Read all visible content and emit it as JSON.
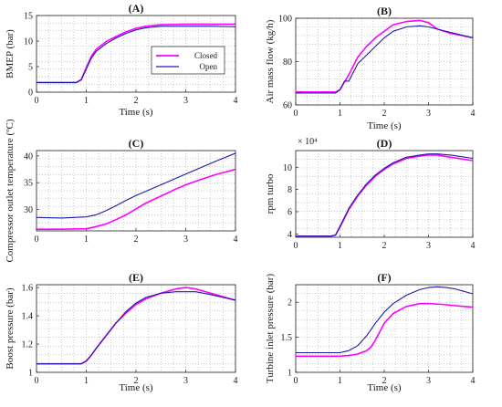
{
  "chart_data": [
    {
      "panel": "(A)",
      "type": "line",
      "xlabel": "Time (s)",
      "ylabel": "BMEP (bar)",
      "xlim": [
        0,
        4
      ],
      "ylim": [
        0,
        15
      ],
      "xticks": [
        0,
        1,
        2,
        3,
        4
      ],
      "yticks": [
        0,
        5,
        10,
        15
      ],
      "grid": "dotted",
      "legend": {
        "placement": "center-right",
        "entries": [
          "Closed",
          "Open"
        ]
      },
      "series": [
        {
          "name": "Closed",
          "color": "#ff00ff",
          "x": [
            0,
            0.8,
            0.9,
            1.0,
            1.1,
            1.2,
            1.4,
            1.6,
            1.8,
            2.0,
            2.2,
            2.5,
            3.0,
            3.5,
            4.0
          ],
          "y": [
            1.9,
            1.9,
            2.5,
            4.8,
            7.0,
            8.4,
            9.9,
            10.9,
            11.8,
            12.5,
            12.9,
            13.2,
            13.3,
            13.3,
            13.3
          ]
        },
        {
          "name": "Open",
          "color": "#1a1aa8",
          "x": [
            0,
            0.8,
            0.9,
            1.0,
            1.1,
            1.2,
            1.4,
            1.6,
            1.8,
            2.0,
            2.2,
            2.5,
            3.0,
            3.5,
            4.0
          ],
          "y": [
            1.9,
            1.9,
            2.4,
            4.5,
            6.6,
            8.0,
            9.5,
            10.6,
            11.5,
            12.2,
            12.6,
            12.9,
            12.9,
            12.9,
            12.8
          ]
        }
      ]
    },
    {
      "panel": "(B)",
      "type": "line",
      "xlabel": "Time (s)",
      "ylabel": "Air mass flow (kg/h)",
      "xlim": [
        0,
        4
      ],
      "ylim": [
        60,
        100
      ],
      "xticks": [
        0,
        1,
        2,
        3,
        4
      ],
      "yticks": [
        60,
        80,
        100
      ],
      "grid": "dotted",
      "series": [
        {
          "name": "Closed",
          "color": "#ff00ff",
          "x": [
            0,
            0.9,
            1.0,
            1.2,
            1.4,
            1.6,
            1.8,
            2.0,
            2.2,
            2.5,
            2.8,
            3.0,
            3.2,
            3.5,
            4.0
          ],
          "y": [
            66,
            66,
            67,
            74,
            82,
            87,
            91,
            94,
            97,
            98.5,
            99,
            98,
            95,
            93,
            91
          ]
        },
        {
          "name": "Open",
          "color": "#1a1aa8",
          "x": [
            0,
            0.9,
            1.0,
            1.1,
            1.2,
            1.3,
            1.4,
            1.6,
            1.8,
            2.0,
            2.2,
            2.5,
            2.8,
            3.0,
            3.3,
            3.6,
            4.0
          ],
          "y": [
            65.5,
            65.5,
            67,
            71,
            71,
            75,
            79,
            83,
            87,
            91,
            94,
            96,
            96.5,
            96,
            94.5,
            93,
            91
          ]
        }
      ]
    },
    {
      "panel": "(C)",
      "type": "line",
      "xlabel": "",
      "ylabel": "Compressor outlet temperature (ºC)",
      "xlim": [
        0,
        4
      ],
      "ylim": [
        26,
        41
      ],
      "xticks": [
        0,
        1,
        2,
        3,
        4
      ],
      "yticks": [
        30,
        35,
        40
      ],
      "grid": "dotted",
      "series": [
        {
          "name": "Closed",
          "color": "#ff00ff",
          "x": [
            0,
            0.5,
            1.0,
            1.2,
            1.4,
            1.6,
            1.8,
            2.0,
            2.2,
            2.5,
            2.8,
            3.0,
            3.3,
            3.6,
            4.0
          ],
          "y": [
            26.3,
            26.3,
            26.4,
            26.8,
            27.3,
            28.1,
            29.0,
            30.1,
            31.2,
            32.5,
            33.8,
            34.6,
            35.6,
            36.5,
            37.5
          ]
        },
        {
          "name": "Open",
          "color": "#1a1aa8",
          "x": [
            0,
            0.5,
            1.0,
            1.2,
            1.4,
            1.6,
            1.8,
            2.0,
            2.2,
            2.5,
            2.8,
            3.0,
            3.3,
            3.6,
            4.0
          ],
          "y": [
            28.5,
            28.4,
            28.6,
            29.0,
            29.8,
            30.7,
            31.7,
            32.6,
            33.4,
            34.6,
            35.8,
            36.6,
            37.8,
            39.0,
            40.5
          ]
        }
      ]
    },
    {
      "panel": "(D)",
      "type": "line",
      "xlabel": "",
      "ylabel": "rpm turbo",
      "exponent_label": "× 10⁴",
      "xlim": [
        0,
        4
      ],
      "ylim": [
        3.7,
        11.5
      ],
      "xticks": [
        0,
        1,
        2,
        3,
        4
      ],
      "yticks": [
        4,
        6,
        8,
        10
      ],
      "grid": "dotted",
      "series": [
        {
          "name": "Closed",
          "color": "#ff00ff",
          "x": [
            0,
            0.8,
            0.9,
            1.0,
            1.1,
            1.2,
            1.4,
            1.6,
            1.8,
            2.0,
            2.2,
            2.5,
            2.8,
            3.0,
            3.2,
            3.5,
            4.0
          ],
          "y": [
            3.8,
            3.8,
            3.9,
            4.6,
            5.4,
            6.2,
            7.4,
            8.4,
            9.2,
            9.8,
            10.3,
            10.8,
            11.0,
            11.1,
            11.1,
            10.9,
            10.6
          ]
        },
        {
          "name": "Open",
          "color": "#1a1aa8",
          "x": [
            0,
            0.8,
            0.9,
            1.0,
            1.1,
            1.2,
            1.4,
            1.6,
            1.8,
            2.0,
            2.2,
            2.5,
            2.8,
            3.0,
            3.2,
            3.5,
            4.0
          ],
          "y": [
            3.8,
            3.8,
            3.9,
            4.7,
            5.5,
            6.3,
            7.5,
            8.5,
            9.3,
            9.9,
            10.4,
            10.9,
            11.1,
            11.2,
            11.2,
            11.1,
            10.8
          ]
        }
      ]
    },
    {
      "panel": "(E)",
      "type": "line",
      "xlabel": "Time (s)",
      "ylabel": "Boost pressure (bar)",
      "xlim": [
        0,
        4
      ],
      "ylim": [
        1.0,
        1.62
      ],
      "xticks": [
        0,
        1,
        2,
        3,
        4
      ],
      "yticks": [
        1.0,
        1.2,
        1.4,
        1.6
      ],
      "ytick_labels": [
        "1",
        "1.2",
        "1.4",
        "1.6"
      ],
      "grid": "dotted",
      "series": [
        {
          "name": "Closed",
          "color": "#ff00ff",
          "x": [
            0,
            0.8,
            0.9,
            1.0,
            1.1,
            1.2,
            1.4,
            1.6,
            1.8,
            2.0,
            2.2,
            2.5,
            2.8,
            3.0,
            3.2,
            3.5,
            4.0
          ],
          "y": [
            1.06,
            1.06,
            1.06,
            1.08,
            1.12,
            1.17,
            1.26,
            1.35,
            1.42,
            1.48,
            1.52,
            1.56,
            1.59,
            1.6,
            1.59,
            1.56,
            1.51
          ]
        },
        {
          "name": "Open",
          "color": "#1a1aa8",
          "x": [
            0,
            0.8,
            0.9,
            1.0,
            1.1,
            1.2,
            1.4,
            1.6,
            1.8,
            2.0,
            2.2,
            2.5,
            2.8,
            3.0,
            3.2,
            3.5,
            4.0
          ],
          "y": [
            1.06,
            1.06,
            1.06,
            1.08,
            1.12,
            1.17,
            1.26,
            1.35,
            1.43,
            1.49,
            1.53,
            1.56,
            1.57,
            1.57,
            1.57,
            1.55,
            1.51
          ]
        }
      ]
    },
    {
      "panel": "(F)",
      "type": "line",
      "xlabel": "Time (s)",
      "ylabel": "Turbine inlet pressure (bar)",
      "xlim": [
        0,
        4
      ],
      "ylim": [
        1.0,
        2.25
      ],
      "xticks": [
        0,
        1,
        2,
        3,
        4
      ],
      "yticks": [
        1.0,
        1.5,
        2.0
      ],
      "ytick_labels": [
        "1",
        "1.5",
        "2"
      ],
      "grid": "dotted",
      "series": [
        {
          "name": "Closed",
          "color": "#ff00ff",
          "x": [
            0,
            0.8,
            1.0,
            1.2,
            1.4,
            1.6,
            1.7,
            1.8,
            1.9,
            2.0,
            2.2,
            2.5,
            2.8,
            3.0,
            3.3,
            3.6,
            4.0
          ],
          "y": [
            1.23,
            1.23,
            1.23,
            1.24,
            1.26,
            1.31,
            1.36,
            1.46,
            1.58,
            1.7,
            1.84,
            1.94,
            1.98,
            1.98,
            1.97,
            1.95,
            1.93
          ]
        },
        {
          "name": "Open",
          "color": "#1a1aa8",
          "x": [
            0,
            0.8,
            1.0,
            1.2,
            1.4,
            1.6,
            1.8,
            2.0,
            2.2,
            2.5,
            2.8,
            3.0,
            3.2,
            3.4,
            3.6,
            4.0
          ],
          "y": [
            1.28,
            1.28,
            1.28,
            1.31,
            1.38,
            1.52,
            1.7,
            1.86,
            1.98,
            2.1,
            2.18,
            2.21,
            2.22,
            2.21,
            2.19,
            2.12
          ]
        }
      ]
    }
  ]
}
